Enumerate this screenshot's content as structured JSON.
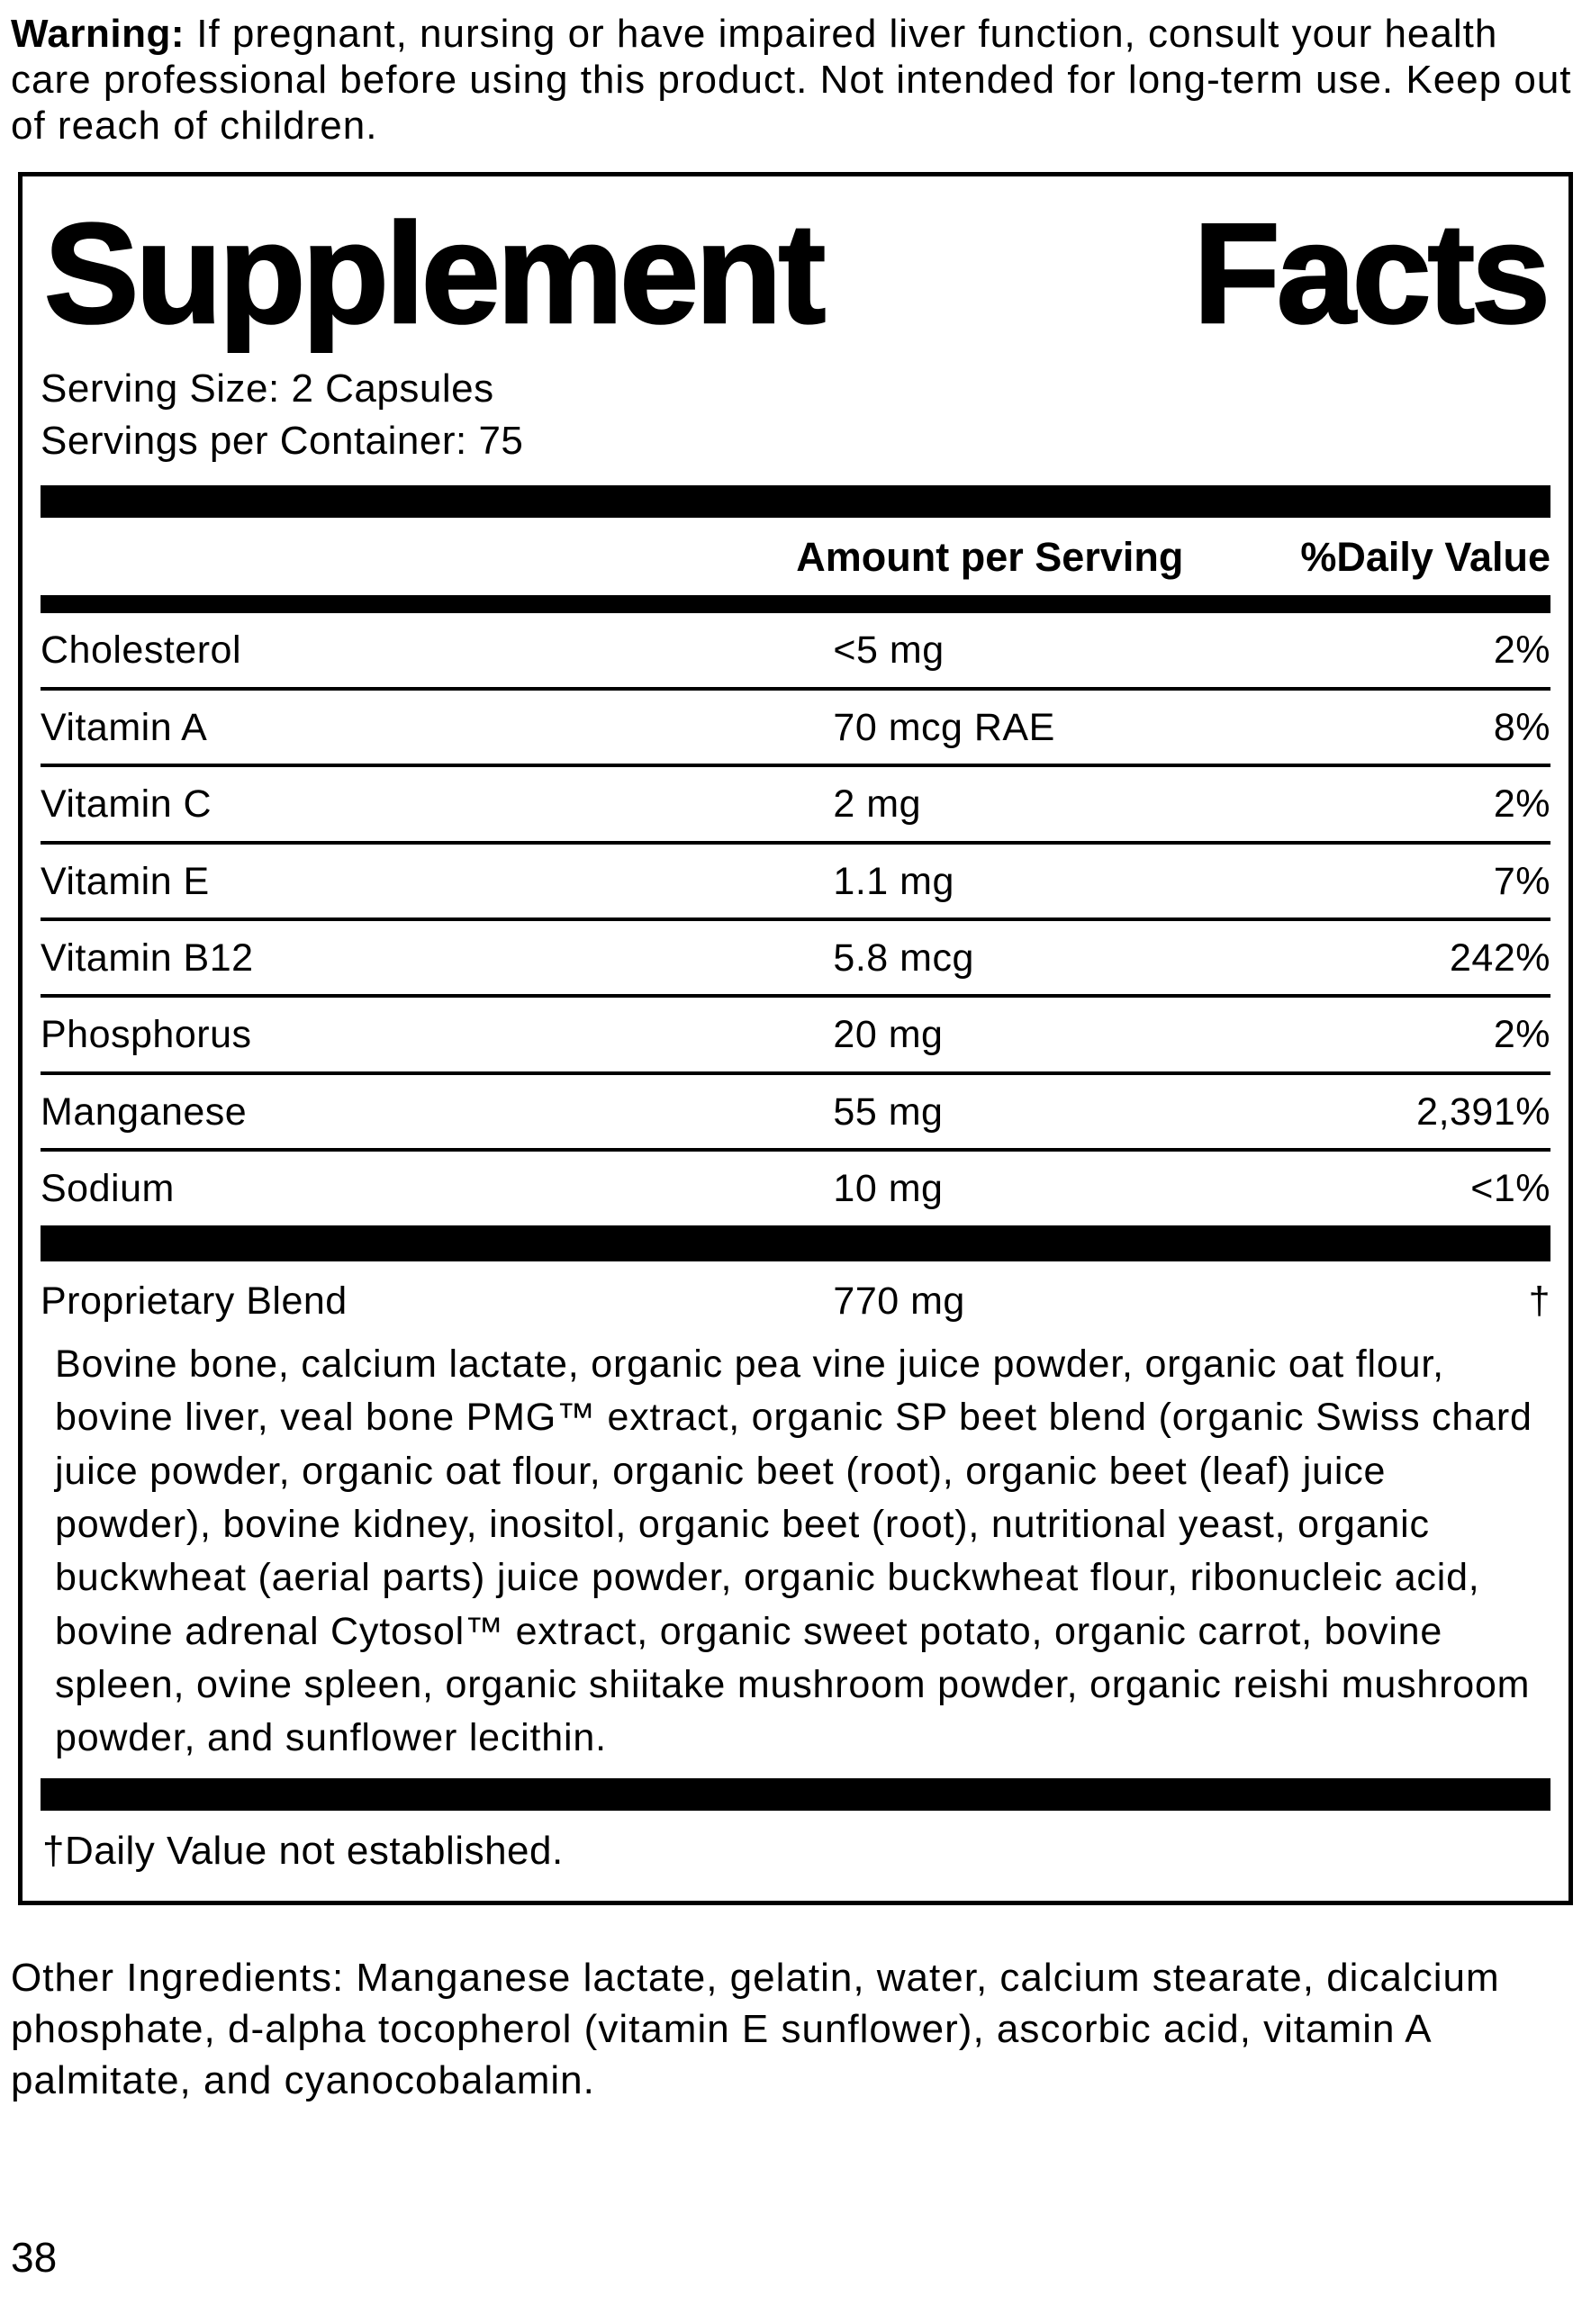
{
  "warning": {
    "label": "Warning:",
    "text": " If pregnant, nursing or have impaired liver function, consult your health care professional before using this product. Not intended for long-term use. Keep out of reach of children."
  },
  "supplement_facts": {
    "title": "Supplement Facts",
    "serving_size": "Serving Size: 2 Capsules",
    "servings_per_container": "Servings per Container: 75",
    "columns": {
      "amount": "Amount per Serving",
      "daily_value": "%Daily Value"
    },
    "rows": [
      {
        "name": "Cholesterol",
        "amount": "<5 mg",
        "dv": "2%"
      },
      {
        "name": "Vitamin A",
        "amount": "70 mcg RAE",
        "dv": "8%"
      },
      {
        "name": "Vitamin C",
        "amount": "2 mg",
        "dv": "2%"
      },
      {
        "name": "Vitamin E",
        "amount": "1.1 mg",
        "dv": "7%"
      },
      {
        "name": "Vitamin B12",
        "amount": "5.8 mcg",
        "dv": "242%"
      },
      {
        "name": "Phosphorus",
        "amount": "20 mg",
        "dv": "2%"
      },
      {
        "name": "Manganese",
        "amount": "55 mg",
        "dv": "2,391%"
      },
      {
        "name": "Sodium",
        "amount": "10 mg",
        "dv": "<1%"
      }
    ],
    "proprietary_blend": {
      "name": "Proprietary Blend",
      "amount": "770 mg",
      "dv": "†",
      "description": "Bovine bone, calcium lactate, organic pea vine juice powder, organic oat flour, bovine liver, veal bone PMG™ extract, organic SP beet blend (organic Swiss chard juice powder, organic oat flour, organic beet (root), organic beet (leaf) juice powder), bovine kidney, inositol, organic beet (root), nutritional yeast, organic buckwheat (aerial parts) juice powder, organic buckwheat flour, ribonucleic acid, bovine adrenal Cytosol™ extract, organic sweet potato, organic carrot, bovine spleen, ovine spleen, organic shiitake mushroom powder, organic reishi mushroom powder, and sunflower lecithin."
    },
    "footnote": "†Daily Value not established."
  },
  "other_ingredients": "Other Ingredients: Manganese lactate, gelatin, water, calcium stearate, dicalcium phosphate, d-alpha tocopherol (vitamin E sunflower), ascorbic acid, vitamin A palmitate, and cyanocobalamin.",
  "page_number": "38",
  "colors": {
    "ink": "#000000",
    "paper": "#ffffff"
  }
}
